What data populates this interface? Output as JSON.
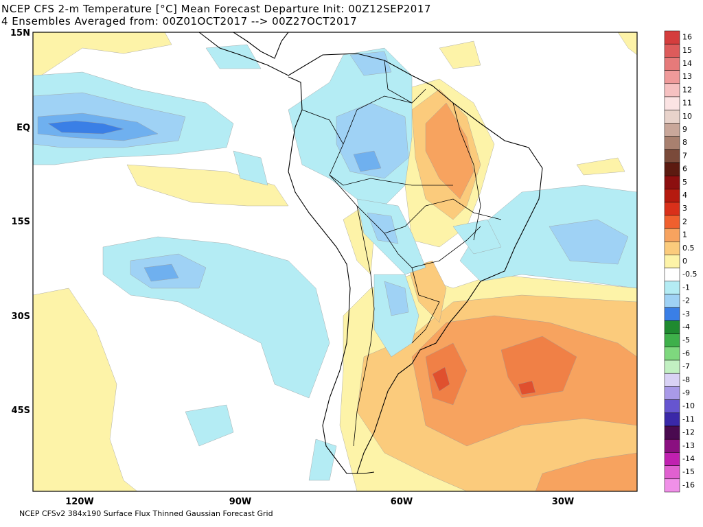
{
  "title": [
    "NCEP CFS 2-m Temperature [°C] Mean Forecast Departure Init: 00Z12SEP2017",
    "4 Ensembles Averaged from: 00Z01OCT2017 --> 00Z27OCT2017"
  ],
  "lat_labels": [
    "15N",
    "EQ",
    "15S",
    "30S",
    "45S"
  ],
  "lon_labels": [
    "120W",
    "90W",
    "60W",
    "30W"
  ],
  "colorbar": [
    {
      "label": "16",
      "color": "#d43d3d"
    },
    {
      "label": "15",
      "color": "#dd5b5b"
    },
    {
      "label": "14",
      "color": "#e67a7a"
    },
    {
      "label": "13",
      "color": "#ef9a9a"
    },
    {
      "label": "12",
      "color": "#f6c1c1"
    },
    {
      "label": "11",
      "color": "#fbe3e3"
    },
    {
      "label": "10",
      "color": "#e8d3cb"
    },
    {
      "label": "9",
      "color": "#c9a79a"
    },
    {
      "label": "8",
      "color": "#a8806f"
    },
    {
      "label": "7",
      "color": "#7a4a3a"
    },
    {
      "label": "6",
      "color": "#5c1a10"
    },
    {
      "label": "5",
      "color": "#8c0f0f"
    },
    {
      "label": "4",
      "color": "#b51a0f"
    },
    {
      "label": "3",
      "color": "#d9301a"
    },
    {
      "label": "2",
      "color": "#f0602e"
    },
    {
      "label": "1",
      "color": "#f7a35f"
    },
    {
      "label": "0.5",
      "color": "#fbcb7c"
    },
    {
      "label": "0",
      "color": "#fdf3a8"
    },
    {
      "label": "-0.5",
      "color": "#ffffff"
    },
    {
      "label": "-1",
      "color": "#b4ecf4"
    },
    {
      "label": "-2",
      "color": "#9fd2f5"
    },
    {
      "label": "-3",
      "color": "#3a7fe6"
    },
    {
      "label": "-4",
      "color": "#1f8a30"
    },
    {
      "label": "-5",
      "color": "#3eb04a"
    },
    {
      "label": "-6",
      "color": "#7ed87e"
    },
    {
      "label": "-7",
      "color": "#c2f0c2"
    },
    {
      "label": "-8",
      "color": "#d9d2f5"
    },
    {
      "label": "-9",
      "color": "#a99ae8"
    },
    {
      "label": "-10",
      "color": "#6655d0"
    },
    {
      "label": "-11",
      "color": "#3a28a8"
    },
    {
      "label": "-12",
      "color": "#4a0a50"
    },
    {
      "label": "-13",
      "color": "#8a1080"
    },
    {
      "label": "-14",
      "color": "#c020b0"
    },
    {
      "label": "-15",
      "color": "#e060d0"
    },
    {
      "label": "-16",
      "color": "#f090e8"
    }
  ],
  "footer": "NCEP CFSv2 384x190 Surface Flux Thinned Gaussian Forecast Grid"
}
